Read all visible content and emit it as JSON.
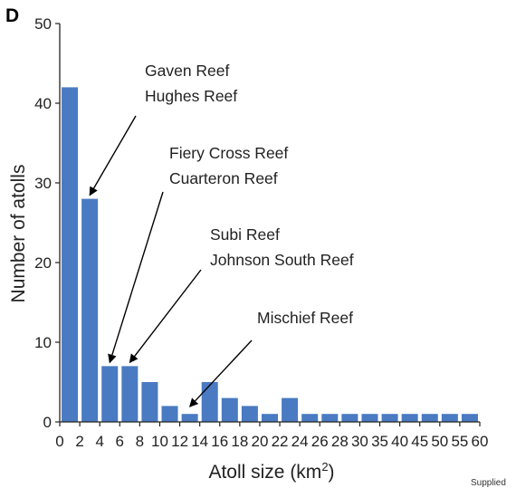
{
  "panel_letter": "D",
  "credit": "Supplied",
  "colors": {
    "bar": "#4a7ac2",
    "text": "#222222"
  },
  "chart_data": {
    "type": "bar",
    "xlabel": "Atoll size (km",
    "xlabel_superscript": "2",
    "xlabel_suffix": ")",
    "ylabel": "Number of atolls",
    "ylim": [
      0,
      50
    ],
    "xlim": [
      0,
      60
    ],
    "x_ticks": [
      "0",
      "2",
      "4",
      "6",
      "8",
      "10",
      "12",
      "14",
      "16",
      "18",
      "20",
      "22",
      "24",
      "26",
      "28",
      "30",
      "35",
      "40",
      "45",
      "50",
      "55",
      "60"
    ],
    "y_ticks": [
      "0",
      "10",
      "20",
      "30",
      "40",
      "50"
    ],
    "bar_centers_tick_index": [
      0.5,
      1.5,
      2.5,
      3.5,
      4.5,
      5.5,
      6.5,
      7.5,
      8.5,
      9.5,
      10.5,
      11.5,
      12.5,
      13.5,
      14.5,
      15.5,
      16.5,
      17.5,
      18.5,
      19.5,
      20.5
    ],
    "values": [
      42,
      28,
      7,
      7,
      5,
      2,
      1,
      5,
      3,
      2,
      1,
      3,
      1,
      1,
      1,
      1,
      1,
      1,
      1,
      1,
      1
    ],
    "annotations": [
      {
        "lines": [
          "Gaven Reef",
          "Hughes Reef"
        ],
        "target_bar": 1
      },
      {
        "lines": [
          "Fiery Cross Reef",
          "Cuarteron Reef"
        ],
        "target_bar": 2
      },
      {
        "lines": [
          "Subi Reef",
          "Johnson South Reef"
        ],
        "target_bar": 3
      },
      {
        "lines": [
          "Mischief Reef"
        ],
        "target_bar": 6
      }
    ],
    "grid": false,
    "legend": "none"
  }
}
